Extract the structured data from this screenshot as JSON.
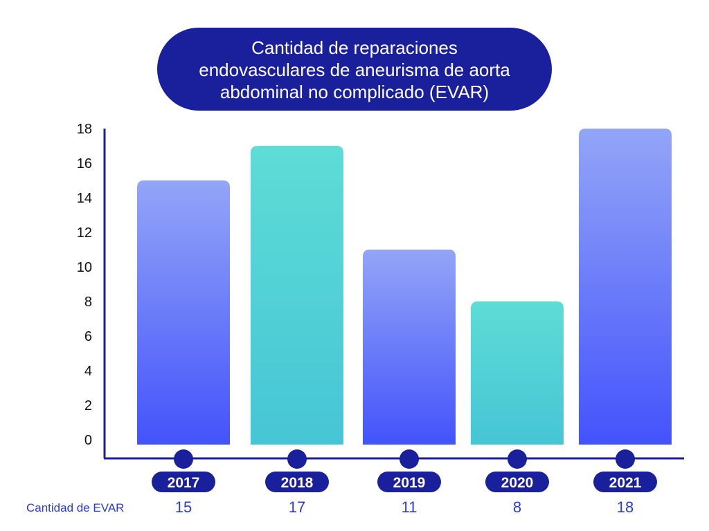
{
  "chart_data": {
    "type": "bar",
    "title_lines": [
      "Cantidad de reparaciones",
      "endovasculares de aneurisma de aorta",
      "abdominal no complicado (EVAR)"
    ],
    "categories": [
      "2017",
      "2018",
      "2019",
      "2020",
      "2021"
    ],
    "values": [
      15,
      17,
      11,
      8,
      18
    ],
    "value_labels": [
      "15",
      "17",
      "11",
      "8",
      "18"
    ],
    "row_label": "Cantidad de EVAR",
    "yticks": [
      "0",
      "2",
      "4",
      "6",
      "8",
      "10",
      "12",
      "14",
      "16",
      "18"
    ],
    "ylim": [
      0,
      18
    ],
    "bar_styles": [
      "blue",
      "teal",
      "blue",
      "teal",
      "blue"
    ],
    "colors": {
      "navy": "#1a1f9c",
      "blue_top": "#93a5f7",
      "blue_bottom": "#4353fb",
      "teal_top": "#5edcd6",
      "teal_bottom": "#46c5d6",
      "row_label": "#2a3bd4"
    }
  }
}
